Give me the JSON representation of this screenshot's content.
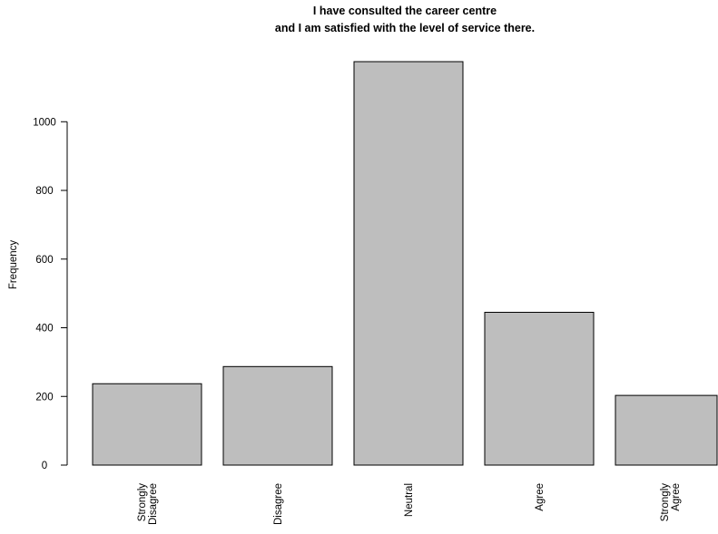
{
  "chart_data": {
    "type": "bar",
    "title_lines": [
      "I have consulted the career centre",
      "and I am satisfied with the level of service there."
    ],
    "xlabel": "",
    "ylabel": "Frequency",
    "categories": [
      [
        "Strongly",
        "Disagree"
      ],
      [
        "Disagree"
      ],
      [
        "Neutral"
      ],
      [
        "Agree"
      ],
      [
        "Strongly",
        "Agree"
      ]
    ],
    "values": [
      237,
      287,
      1175,
      445,
      203
    ],
    "yticks": [
      0,
      200,
      400,
      600,
      800,
      1000
    ],
    "ylim": [
      0,
      1175
    ],
    "bar_color": "#bebebe",
    "grid": false,
    "legend": "none"
  }
}
